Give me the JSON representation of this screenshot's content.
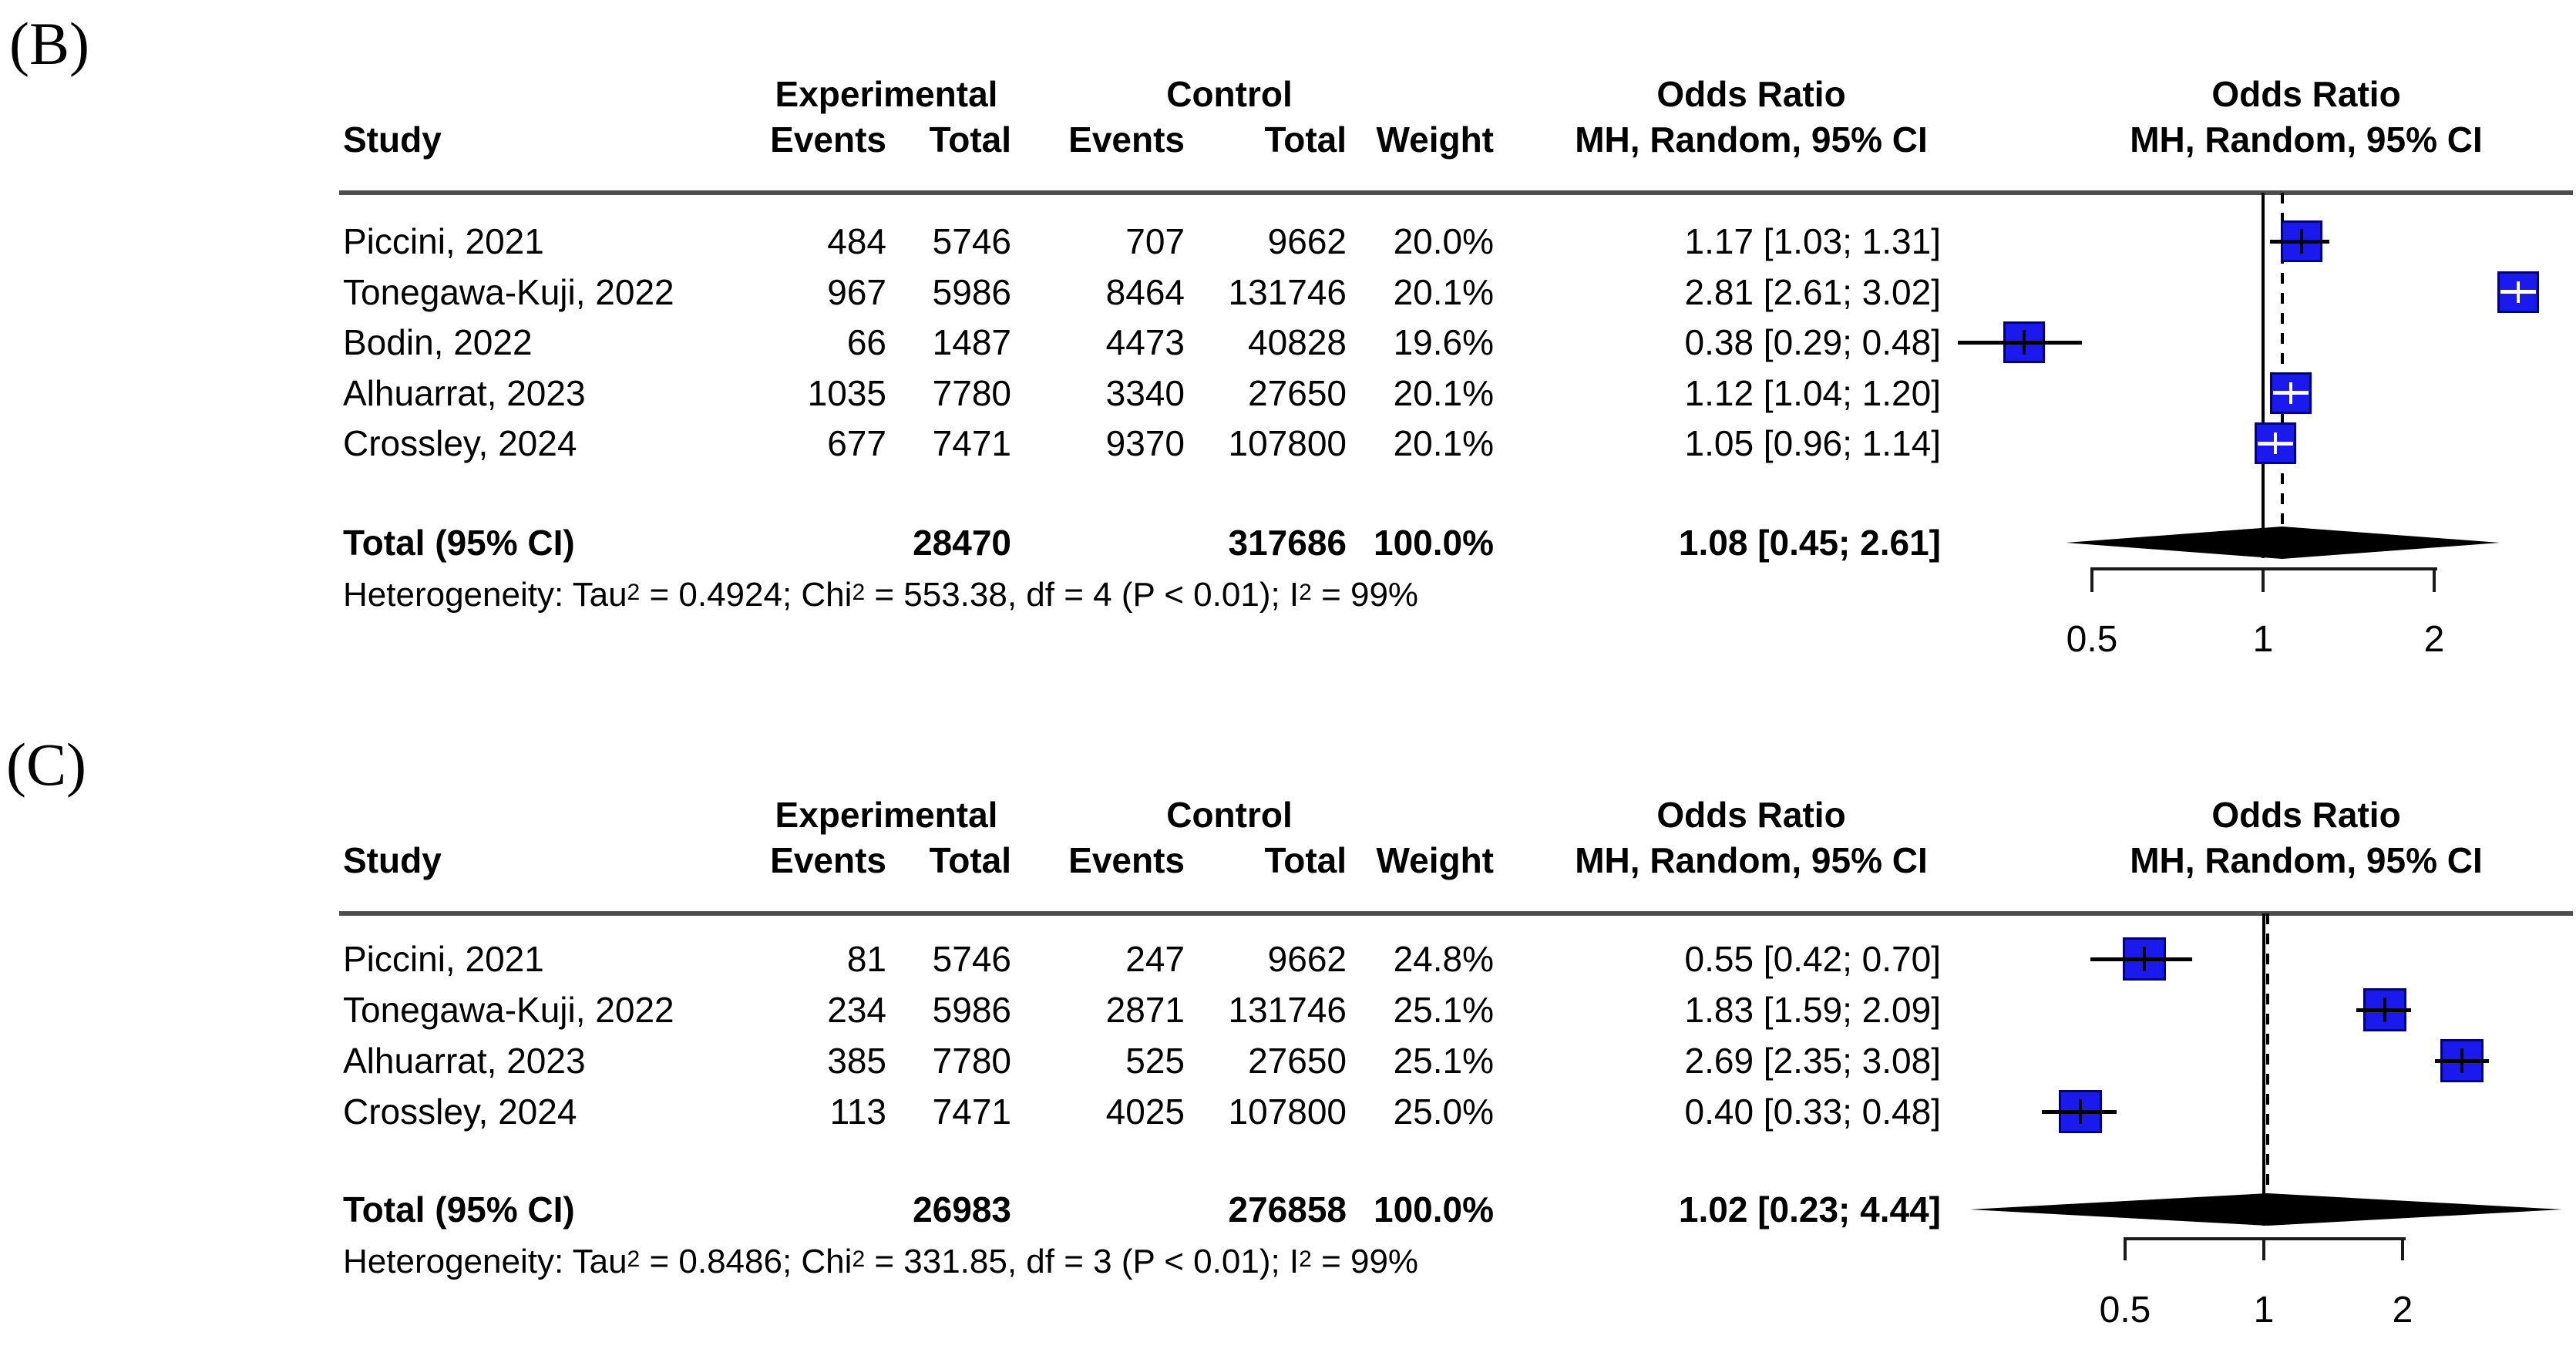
{
  "figure": {
    "type": "forest-plot-meta-analysis",
    "panels_count": 2
  },
  "chart_data": [
    {
      "type": "scatter",
      "panel_label": "(B)",
      "title": "Odds Ratio, MH, Random, 95% CI (forest plot)",
      "x_scale": "log",
      "axis_ticks": [
        0.5,
        1,
        2
      ],
      "null_line": 1,
      "pooled_line": 1.08,
      "column_headers": {
        "study": "Study",
        "exp_group": "Experimental",
        "ctrl_group": "Control",
        "events": "Events",
        "total": "Total",
        "weight": "Weight",
        "or_group": "Odds Ratio",
        "mh": "MH, Random, 95% CI",
        "plot_or_group": "Odds Ratio",
        "plot_mh": "MH, Random, 95% CI"
      },
      "rows": [
        {
          "study": "Piccini, 2021",
          "exp_events": "484",
          "exp_total": "5746",
          "ctrl_events": "707",
          "ctrl_total": "9662",
          "weight": "20.0%",
          "or_text": "1.17 [1.03; 1.31]",
          "or": 1.17,
          "lo": 1.03,
          "hi": 1.31
        },
        {
          "study": "Tonegawa-Kuji, 2022",
          "exp_events": "967",
          "exp_total": "5986",
          "ctrl_events": "8464",
          "ctrl_total": "131746",
          "weight": "20.1%",
          "or_text": "2.81 [2.61; 3.02]",
          "or": 2.81,
          "lo": 2.61,
          "hi": 3.02
        },
        {
          "study": "Bodin, 2022",
          "exp_events": "66",
          "exp_total": "1487",
          "ctrl_events": "4473",
          "ctrl_total": "40828",
          "weight": "19.6%",
          "or_text": "0.38 [0.29; 0.48]",
          "or": 0.38,
          "lo": 0.29,
          "hi": 0.48
        },
        {
          "study": "Alhuarrat, 2023",
          "exp_events": "1035",
          "exp_total": "7780",
          "ctrl_events": "3340",
          "ctrl_total": "27650",
          "weight": "20.1%",
          "or_text": "1.12 [1.04; 1.20]",
          "or": 1.12,
          "lo": 1.04,
          "hi": 1.2
        },
        {
          "study": "Crossley, 2024",
          "exp_events": "677",
          "exp_total": "7471",
          "ctrl_events": "9370",
          "ctrl_total": "107800",
          "weight": "20.1%",
          "or_text": "1.05 [0.96; 1.14]",
          "or": 1.05,
          "lo": 0.96,
          "hi": 1.14
        }
      ],
      "total": {
        "label": "Total (95% CI)",
        "exp_total": "28470",
        "ctrl_total": "317686",
        "weight": "100.0%",
        "or_text": "1.08 [0.45; 2.61]",
        "or": 1.08,
        "lo": 0.45,
        "hi": 2.61
      },
      "heterogeneity": [
        {
          "t": "Heterogeneity: Tau"
        },
        {
          "s": "2"
        },
        {
          "t": " = 0.4924; Chi"
        },
        {
          "s": "2"
        },
        {
          "t": " = 553.38, df = 4 (P < 0.01); I"
        },
        {
          "s": "2"
        },
        {
          "t": " = 99%"
        }
      ],
      "tick_labels": [
        "0.5",
        "1",
        "2"
      ]
    },
    {
      "type": "scatter",
      "panel_label": "(C)",
      "title": "Odds Ratio, MH, Random, 95% CI (forest plot)",
      "x_scale": "log",
      "axis_ticks": [
        0.5,
        1,
        2
      ],
      "null_line": 1,
      "pooled_line": 1.02,
      "column_headers": {
        "study": "Study",
        "exp_group": "Experimental",
        "ctrl_group": "Control",
        "events": "Events",
        "total": "Total",
        "weight": "Weight",
        "or_group": "Odds Ratio",
        "mh": "MH, Random, 95% CI",
        "plot_or_group": "Odds Ratio",
        "plot_mh": "MH, Random, 95% CI"
      },
      "rows": [
        {
          "study": "Piccini, 2021",
          "exp_events": "81",
          "exp_total": "5746",
          "ctrl_events": "247",
          "ctrl_total": "9662",
          "weight": "24.8%",
          "or_text": "0.55 [0.42; 0.70]",
          "or": 0.55,
          "lo": 0.42,
          "hi": 0.7
        },
        {
          "study": "Tonegawa-Kuji, 2022",
          "exp_events": "234",
          "exp_total": "5986",
          "ctrl_events": "2871",
          "ctrl_total": "131746",
          "weight": "25.1%",
          "or_text": "1.83 [1.59; 2.09]",
          "or": 1.83,
          "lo": 1.59,
          "hi": 2.09
        },
        {
          "study": "Alhuarrat, 2023",
          "exp_events": "385",
          "exp_total": "7780",
          "ctrl_events": "525",
          "ctrl_total": "27650",
          "weight": "25.1%",
          "or_text": "2.69 [2.35; 3.08]",
          "or": 2.69,
          "lo": 2.35,
          "hi": 3.08
        },
        {
          "study": "Crossley, 2024",
          "exp_events": "113",
          "exp_total": "7471",
          "ctrl_events": "4025",
          "ctrl_total": "107800",
          "weight": "25.0%",
          "or_text": "0.40 [0.33; 0.48]",
          "or": 0.4,
          "lo": 0.33,
          "hi": 0.48
        }
      ],
      "total": {
        "label": "Total (95% CI)",
        "exp_total": "26983",
        "ctrl_total": "276858",
        "weight": "100.0%",
        "or_text": "1.02 [0.23; 4.44]",
        "or": 1.02,
        "lo": 0.23,
        "hi": 4.44
      },
      "heterogeneity": [
        {
          "t": "Heterogeneity: Tau"
        },
        {
          "s": "2"
        },
        {
          "t": " = 0.8486; Chi"
        },
        {
          "s": "2"
        },
        {
          "t": " = 331.85, df = 3 (P < 0.01); I"
        },
        {
          "s": "2"
        },
        {
          "t": " = 99%"
        }
      ],
      "tick_labels": [
        "0.5",
        "1",
        "2"
      ]
    }
  ]
}
